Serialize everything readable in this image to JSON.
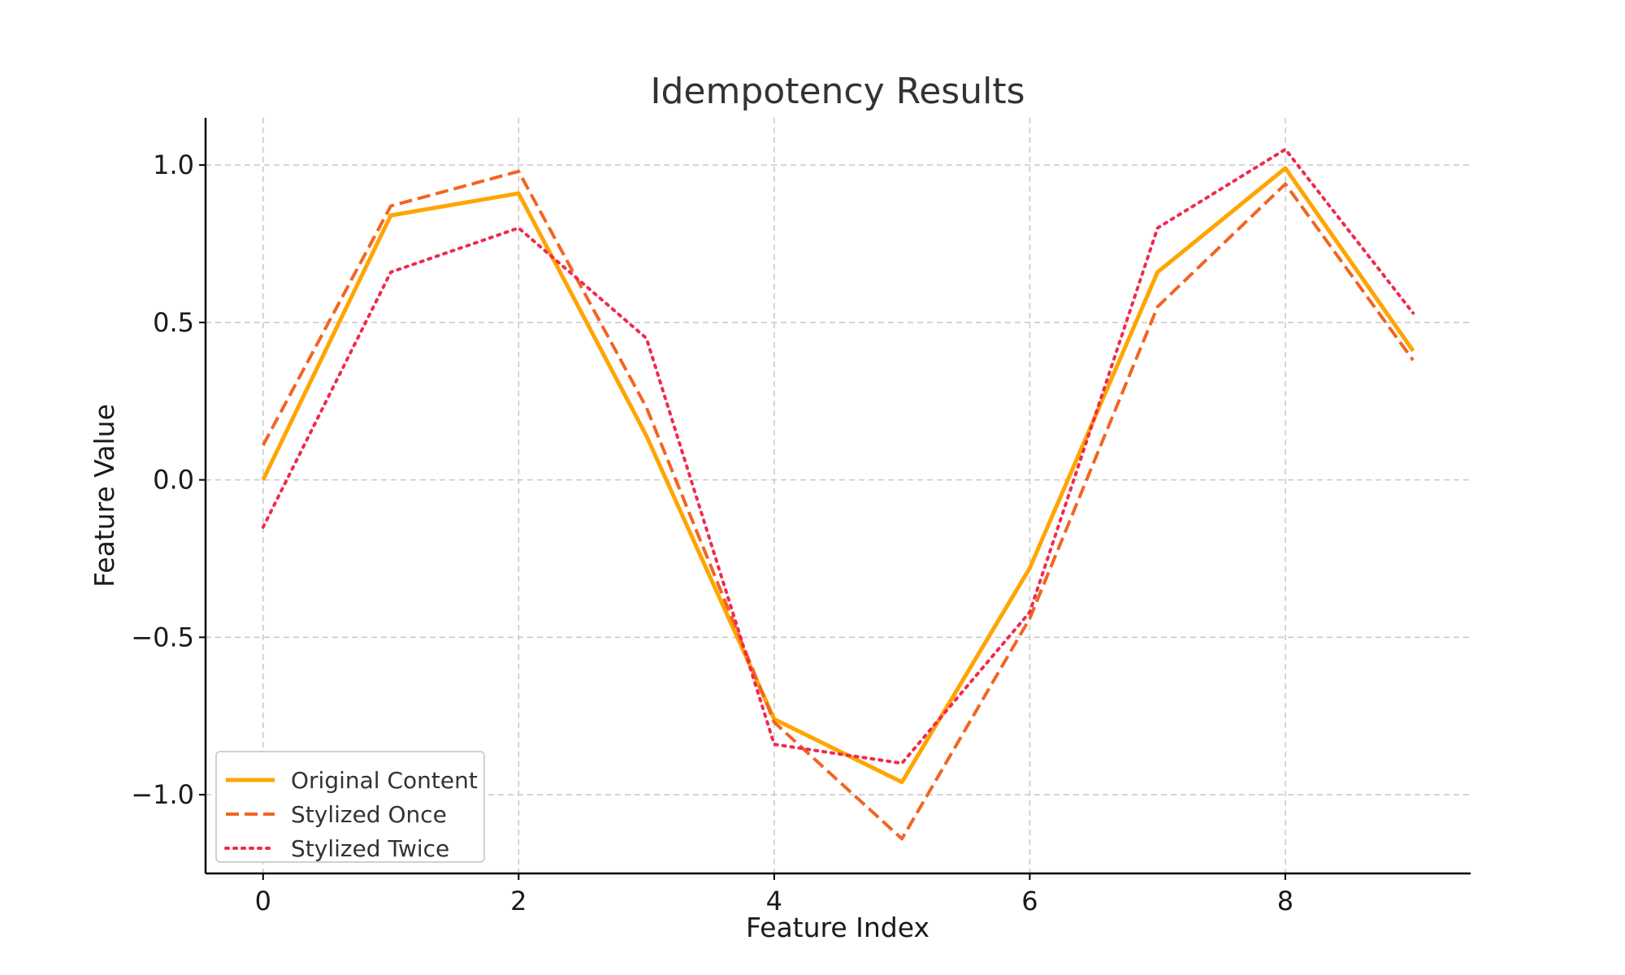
{
  "chart_data": {
    "type": "line",
    "title": "Idempotency Results",
    "xlabel": "Feature Index",
    "ylabel": "Feature Value",
    "xlim": [
      -0.45,
      9.45
    ],
    "ylim": [
      -1.25,
      1.15
    ],
    "xticks": [
      0,
      2,
      4,
      6,
      8
    ],
    "xtick_labels": [
      "0",
      "2",
      "4",
      "6",
      "8"
    ],
    "yticks": [
      -1.0,
      -0.5,
      0.0,
      0.5,
      1.0
    ],
    "ytick_labels": [
      "−1.0",
      "−0.5",
      "0.0",
      "0.5",
      "1.0"
    ],
    "grid": true,
    "legend_position": "lower-left",
    "x": [
      0,
      1,
      2,
      3,
      4,
      5,
      6,
      7,
      8,
      9
    ],
    "series": [
      {
        "name": "Original Content",
        "values": [
          0.0,
          0.84,
          0.91,
          0.14,
          -0.76,
          -0.96,
          -0.28,
          0.66,
          0.99,
          0.41
        ],
        "color": "#ffa500",
        "style": "solid"
      },
      {
        "name": "Stylized Once",
        "values": [
          0.11,
          0.87,
          0.98,
          0.23,
          -0.77,
          -1.14,
          -0.44,
          0.55,
          0.94,
          0.38
        ],
        "color": "#f26522",
        "style": "dashed"
      },
      {
        "name": "Stylized Twice",
        "values": [
          -0.15,
          0.66,
          0.8,
          0.45,
          -0.84,
          -0.9,
          -0.42,
          0.8,
          1.05,
          0.53
        ],
        "color": "#f2294e",
        "style": "dotted"
      }
    ]
  }
}
